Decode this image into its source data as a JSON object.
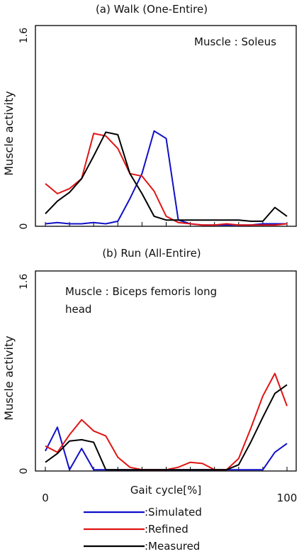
{
  "chart_data": [
    {
      "type": "line",
      "title": "(a) Walk (One-Entire)",
      "annotation": "Muscle : Soleus",
      "ylabel": "Muscle activity",
      "xlabel": "",
      "xlim": [
        0,
        100
      ],
      "ylim": [
        0,
        1.6
      ],
      "ytick_labels": [
        "0",
        "1.6"
      ],
      "x": [
        0,
        5,
        10,
        15,
        20,
        25,
        30,
        35,
        40,
        45,
        50,
        55,
        60,
        65,
        70,
        75,
        80,
        85,
        90,
        95,
        100
      ],
      "series": [
        {
          "name": ":Simulated",
          "color": "#1010c8",
          "values": [
            0.02,
            0.03,
            0.02,
            0.02,
            0.03,
            0.02,
            0.04,
            0.22,
            0.42,
            0.76,
            0.7,
            0.05,
            0.02,
            0.01,
            0.01,
            0.01,
            0.01,
            0.01,
            0.02,
            0.02,
            0.02
          ]
        },
        {
          "name": ":Refined",
          "color": "#e01414",
          "values": [
            0.34,
            0.26,
            0.3,
            0.38,
            0.74,
            0.72,
            0.62,
            0.42,
            0.4,
            0.28,
            0.08,
            0.03,
            0.02,
            0.01,
            0.01,
            0.02,
            0.01,
            0.01,
            0.01,
            0.01,
            0.02
          ]
        },
        {
          "name": ":Measured",
          "color": "#000000",
          "values": [
            0.1,
            0.2,
            0.27,
            0.38,
            0.56,
            0.75,
            0.73,
            0.42,
            0.26,
            0.08,
            0.05,
            0.05,
            0.05,
            0.05,
            0.05,
            0.05,
            0.05,
            0.04,
            0.04,
            0.15,
            0.08
          ]
        }
      ]
    },
    {
      "type": "line",
      "title": "(b) Run (All-Entire)",
      "annotation": "Muscle : Biceps femoris long head",
      "ylabel": "Muscle activity",
      "xlabel": "Gait cycle[%]",
      "xlim": [
        0,
        100
      ],
      "ylim": [
        0,
        1.6
      ],
      "ytick_labels": [
        "0",
        "1.6"
      ],
      "xtick_labels": [
        "0",
        "100"
      ],
      "x": [
        0,
        5,
        10,
        15,
        20,
        25,
        30,
        35,
        40,
        45,
        50,
        55,
        60,
        65,
        70,
        75,
        80,
        85,
        90,
        95,
        100
      ],
      "series": [
        {
          "name": ":Simulated",
          "color": "#1010c8",
          "values": [
            0.16,
            0.35,
            0.01,
            0.18,
            0.01,
            0.01,
            0.01,
            0.01,
            0.01,
            0.01,
            0.01,
            0.01,
            0.01,
            0.01,
            0.01,
            0.01,
            0.01,
            0.01,
            0.01,
            0.15,
            0.22
          ]
        },
        {
          "name": ":Refined",
          "color": "#e01414",
          "values": [
            0.2,
            0.15,
            0.29,
            0.41,
            0.32,
            0.28,
            0.11,
            0.03,
            0.01,
            0.01,
            0.01,
            0.03,
            0.07,
            0.06,
            0.01,
            0.01,
            0.1,
            0.34,
            0.6,
            0.78,
            0.52
          ]
        },
        {
          "name": ":Measured",
          "color": "#000000",
          "values": [
            0.07,
            0.14,
            0.24,
            0.25,
            0.23,
            0.01,
            0.01,
            0.01,
            0.01,
            0.01,
            0.01,
            0.01,
            0.01,
            0.01,
            0.01,
            0.01,
            0.05,
            0.23,
            0.43,
            0.62,
            0.69
          ]
        }
      ]
    }
  ],
  "legend": {
    "entries": [
      {
        "label": ":Simulated",
        "color": "#1010c8"
      },
      {
        "label": ":Refined",
        "color": "#e01414"
      },
      {
        "label": ":Measured",
        "color": "#000000"
      }
    ]
  }
}
